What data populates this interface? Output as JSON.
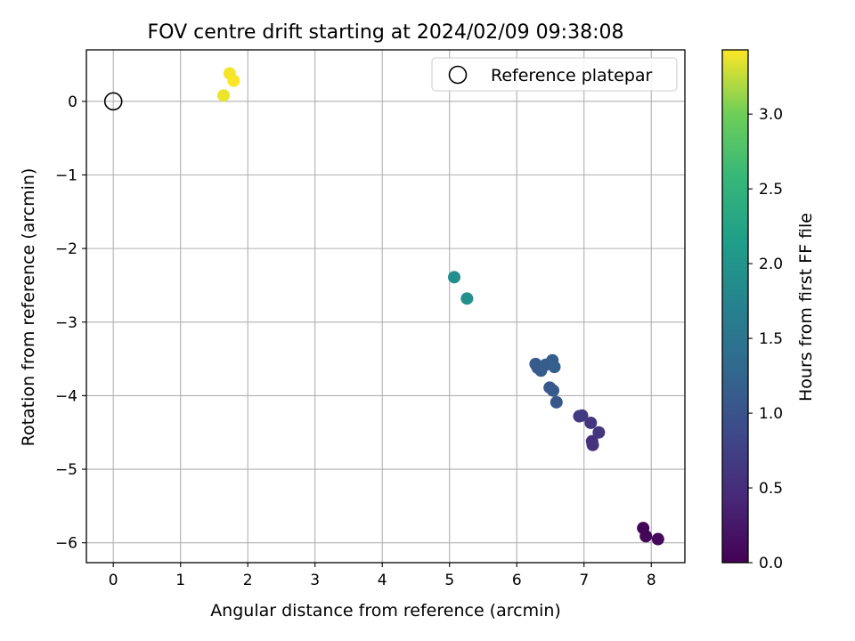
{
  "chart_data": {
    "type": "scatter",
    "title": "FOV centre drift starting at 2024/02/09 09:38:08",
    "xlabel": "Angular distance from reference (arcmin)",
    "ylabel": "Rotation from reference (arcmin)",
    "xlim": [
      -0.4,
      8.5
    ],
    "ylim": [
      -6.27,
      0.7
    ],
    "xticks": [
      0,
      1,
      2,
      3,
      4,
      5,
      6,
      7,
      8
    ],
    "xtick_labels": [
      "0",
      "1",
      "2",
      "3",
      "4",
      "5",
      "6",
      "7",
      "8"
    ],
    "yticks": [
      0,
      -1,
      -2,
      -3,
      -4,
      -5,
      -6
    ],
    "ytick_labels": [
      "0",
      "−1",
      "−2",
      "−3",
      "−4",
      "−5",
      "−6"
    ],
    "grid": true,
    "legend": {
      "placement": "top-right",
      "entries": [
        "Reference platepar"
      ]
    },
    "reference_point": {
      "x": 0,
      "y": 0
    },
    "colorbar": {
      "label": "Hours from first FF file",
      "range": [
        0,
        3.43
      ],
      "ticks": [
        0,
        0.5,
        1,
        1.5,
        2,
        2.5,
        3
      ],
      "tick_labels": [
        "0.0",
        "0.5",
        "1.0",
        "1.5",
        "2.0",
        "2.5",
        "3.0"
      ],
      "colormap": "viridis"
    },
    "points": [
      {
        "x": 7.88,
        "y": -5.8,
        "hours": 0.03
      },
      {
        "x": 7.92,
        "y": -5.91,
        "hours": 0.05
      },
      {
        "x": 8.1,
        "y": -5.95,
        "hours": 0.08
      },
      {
        "x": 7.12,
        "y": -4.62,
        "hours": 0.55
      },
      {
        "x": 7.13,
        "y": -4.67,
        "hours": 0.57
      },
      {
        "x": 7.22,
        "y": -4.5,
        "hours": 0.6
      },
      {
        "x": 7.1,
        "y": -4.37,
        "hours": 0.62
      },
      {
        "x": 6.93,
        "y": -4.28,
        "hours": 0.65
      },
      {
        "x": 6.97,
        "y": -4.27,
        "hours": 0.67
      },
      {
        "x": 6.59,
        "y": -4.09,
        "hours": 1.05
      },
      {
        "x": 6.49,
        "y": -3.89,
        "hours": 1.07
      },
      {
        "x": 6.54,
        "y": -3.93,
        "hours": 1.08
      },
      {
        "x": 6.28,
        "y": -3.57,
        "hours": 1.1
      },
      {
        "x": 6.31,
        "y": -3.62,
        "hours": 1.11
      },
      {
        "x": 6.36,
        "y": -3.66,
        "hours": 1.12
      },
      {
        "x": 6.43,
        "y": -3.58,
        "hours": 1.13
      },
      {
        "x": 6.53,
        "y": -3.52,
        "hours": 1.15
      },
      {
        "x": 6.56,
        "y": -3.61,
        "hours": 1.16
      },
      {
        "x": 5.07,
        "y": -2.39,
        "hours": 1.92
      },
      {
        "x": 5.26,
        "y": -2.68,
        "hours": 1.94
      },
      {
        "x": 1.64,
        "y": 0.08,
        "hours": 3.38
      },
      {
        "x": 1.73,
        "y": 0.38,
        "hours": 3.4
      },
      {
        "x": 1.79,
        "y": 0.28,
        "hours": 3.42
      }
    ]
  }
}
